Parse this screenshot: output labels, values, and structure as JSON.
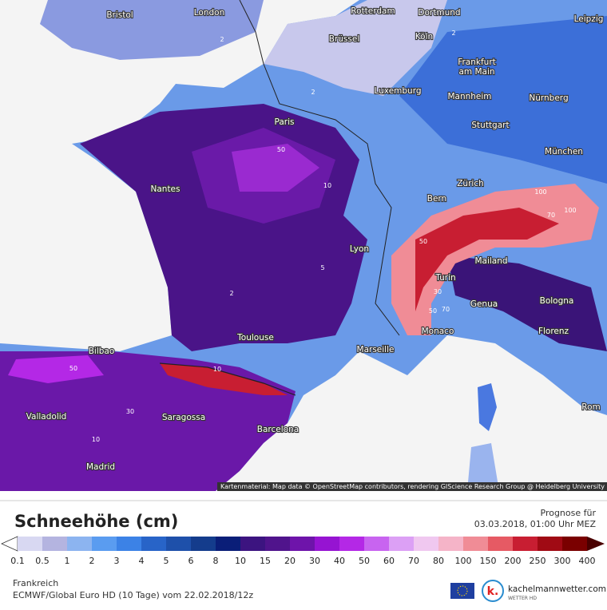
{
  "map": {
    "cities": [
      "Bristol",
      "London",
      "Rotterdam",
      "Dortmund",
      "Brüssel",
      "Köln",
      "Leipzig",
      "Frankfurt",
      "am Main",
      "Luxemburg",
      "Mannheim",
      "Nürnberg",
      "Paris",
      "Stuttgart",
      "München",
      "Nantes",
      "Zürich",
      "Bern",
      "Lyon",
      "Mailand",
      "Turin",
      "Bologna",
      "Genua",
      "Toulouse",
      "Monaco",
      "Florenz",
      "Marseille",
      "Bilbao",
      "Valladolid",
      "Saragossa",
      "Barcelona",
      "Madrid",
      "Rom"
    ],
    "contour_labels": [
      2,
      2,
      2,
      50,
      10,
      5,
      100,
      100,
      70,
      50,
      50,
      70,
      30,
      10,
      50,
      30,
      10,
      2
    ],
    "attribution": "Kartenmaterial: Map data © OpenStreetMap contributors, rendering GIScience Research Group @ Heidelberg University"
  },
  "legend": {
    "title": "Schneehöhe (cm)",
    "ticks": [
      0.1,
      0.5,
      1,
      2,
      3,
      4,
      5,
      6,
      8,
      10,
      15,
      20,
      30,
      40,
      50,
      60,
      70,
      80,
      100,
      150,
      200,
      250,
      300,
      400
    ],
    "colors": [
      "#d8d8f2",
      "#b4b4e0",
      "#8cb4f0",
      "#5a9cf0",
      "#3c82e6",
      "#2864c8",
      "#1e50aa",
      "#143c8c",
      "#0a1e78",
      "#3c1480",
      "#50148c",
      "#6e14aa",
      "#9614d2",
      "#b428e6",
      "#c864f0",
      "#dca0f5",
      "#f0c8f0",
      "#f5b4c8",
      "#f08c96",
      "#e65a64",
      "#c81e32",
      "#a00a14",
      "#7a0000"
    ],
    "over_color": "#4a0000",
    "under_color": "#ffffff"
  },
  "footer": {
    "forecast_label": "Prognose für",
    "forecast_time": "03.03.2018, 01:00 Uhr MEZ",
    "region": "Frankreich",
    "model": "ECMWF/Global Euro HD (10 Tage) vom 22.02.2018/12z",
    "brand": "kachelmannwetter.com",
    "brand_sub": "WETTER HD"
  }
}
